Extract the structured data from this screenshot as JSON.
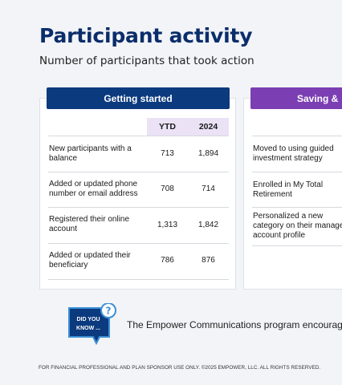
{
  "page": {
    "title": "Participant activity",
    "subtitle": "Number of participants that took action"
  },
  "cards": {
    "getting_started": {
      "header": "Getting started",
      "columns": [
        "YTD",
        "2024"
      ],
      "rows": [
        {
          "label": "New participants with a balance",
          "ytd": "713",
          "y2024": "1,894"
        },
        {
          "label": "Added or updated phone number or email address",
          "ytd": "708",
          "y2024": "714"
        },
        {
          "label": "Registered their online account",
          "ytd": "1,313",
          "y2024": "1,842"
        },
        {
          "label": "Added or updated their beneficiary",
          "ytd": "786",
          "y2024": "876"
        }
      ]
    },
    "saving": {
      "header": "Saving &",
      "rows": [
        {
          "lines": [
            "Moved to using guided",
            "investment strategy"
          ]
        },
        {
          "lines": [
            "Enrolled in My Total",
            "Retirement"
          ]
        },
        {
          "lines": [
            "Personalized a new",
            "category on their manage",
            "account profile"
          ]
        }
      ]
    }
  },
  "did_you_know": {
    "badge_lines": [
      "DID YOU",
      "KNOW ..."
    ],
    "text": "The Empower Communications program encourag",
    "colors": {
      "badge": "#0b3a7e",
      "accent": "#3b8fd6"
    }
  },
  "footer": {
    "text": "FOR FINANCIAL PROFESSIONAL AND PLAN SPONSOR USE ONLY. ©2025 EMPOWER, LLC. ALL RIGHTS RESERVED."
  },
  "colors": {
    "title": "#0b2d6b",
    "header_left": "#0b3a7e",
    "header_right": "#7b3fb3",
    "column_head_bg": "#ebe2f6"
  }
}
